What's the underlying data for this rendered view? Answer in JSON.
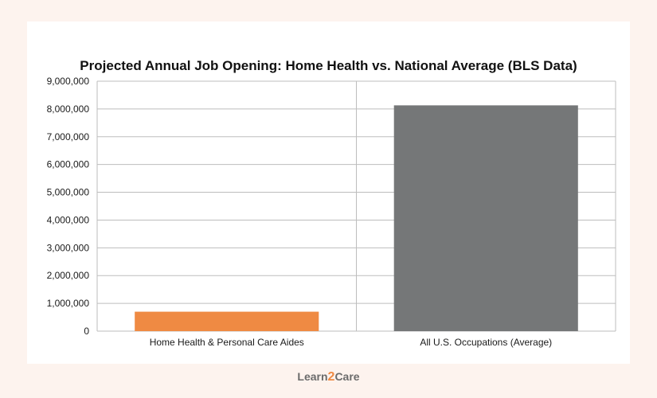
{
  "chart_data": {
    "type": "bar",
    "title": "Projected Annual Job Opening: Home Health vs. National Average (BLS Data)",
    "categories": [
      "Home Health & Personal Care Aides",
      "All U.S. Occupations (Average)"
    ],
    "values": [
      700000,
      8130000
    ],
    "bar_colors": [
      "#ef8a43",
      "#757778"
    ],
    "ylim": [
      0,
      9000000
    ],
    "yticks": [
      "0",
      "1,000,000",
      "2,000,000",
      "3,000,000",
      "4,000,000",
      "5,000,000",
      "6,000,000",
      "7,000,000",
      "8,000,000",
      "9,000,000"
    ],
    "grid": true,
    "xlabel": "",
    "ylabel": ""
  },
  "brand": {
    "prefix": "Learn",
    "number": "2",
    "suffix": "Care"
  },
  "colors": {
    "background": "#fdf3ee",
    "grid": "#bdbdbd",
    "accent": "#ef8a43"
  }
}
